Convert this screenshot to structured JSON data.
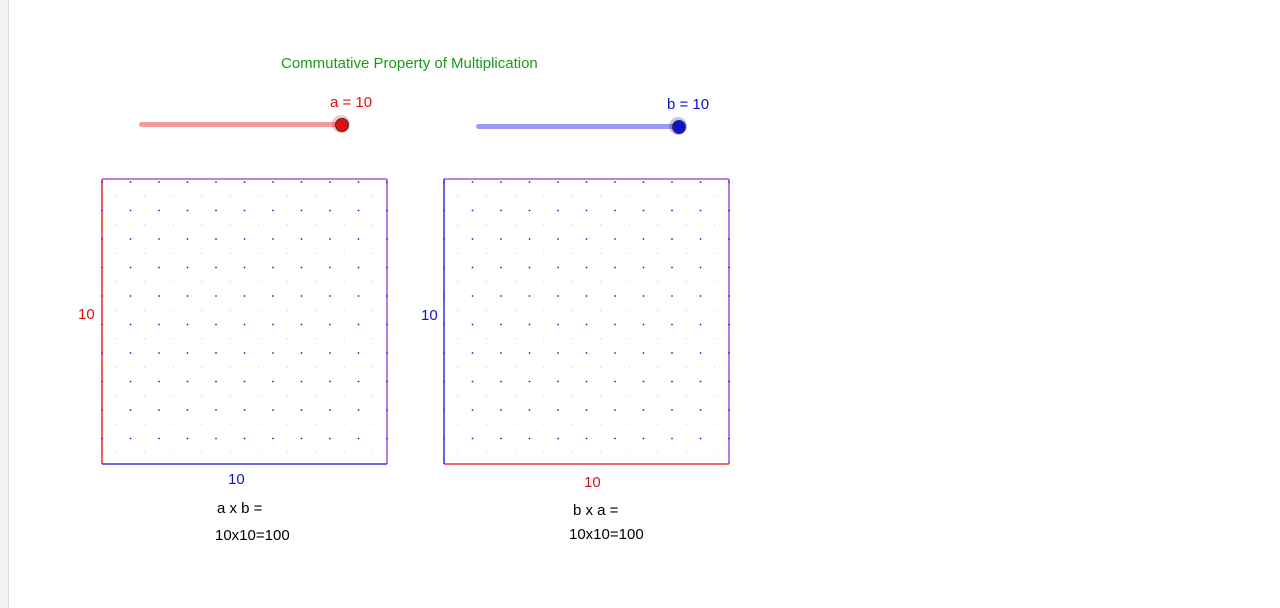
{
  "title": "Commutative Property of Multiplication",
  "slider_a": {
    "label": "a = 10",
    "value": 10,
    "fraction": 1.0,
    "color": "#e01010",
    "track_color": "#f59a9a"
  },
  "slider_b": {
    "label": "b = 10",
    "value": 10,
    "fraction": 1.0,
    "color": "#1010d0",
    "track_color": "#9a9af5"
  },
  "left_panel": {
    "side_label": "10",
    "bottom_label": "10",
    "expression_label": "a x b =",
    "result_label": "10x10=100",
    "rows": 10,
    "cols": 10
  },
  "right_panel": {
    "side_label": "10",
    "bottom_label": "10",
    "expression_label": "b x a =",
    "result_label": "10x10=100",
    "rows": 10,
    "cols": 10
  },
  "colors": {
    "title": "#1a9a1a",
    "a": "#e01010",
    "b": "#1010d0",
    "frame": "#9b30d9",
    "dots_a": "#e01010",
    "dots_b": "#2020d0"
  }
}
